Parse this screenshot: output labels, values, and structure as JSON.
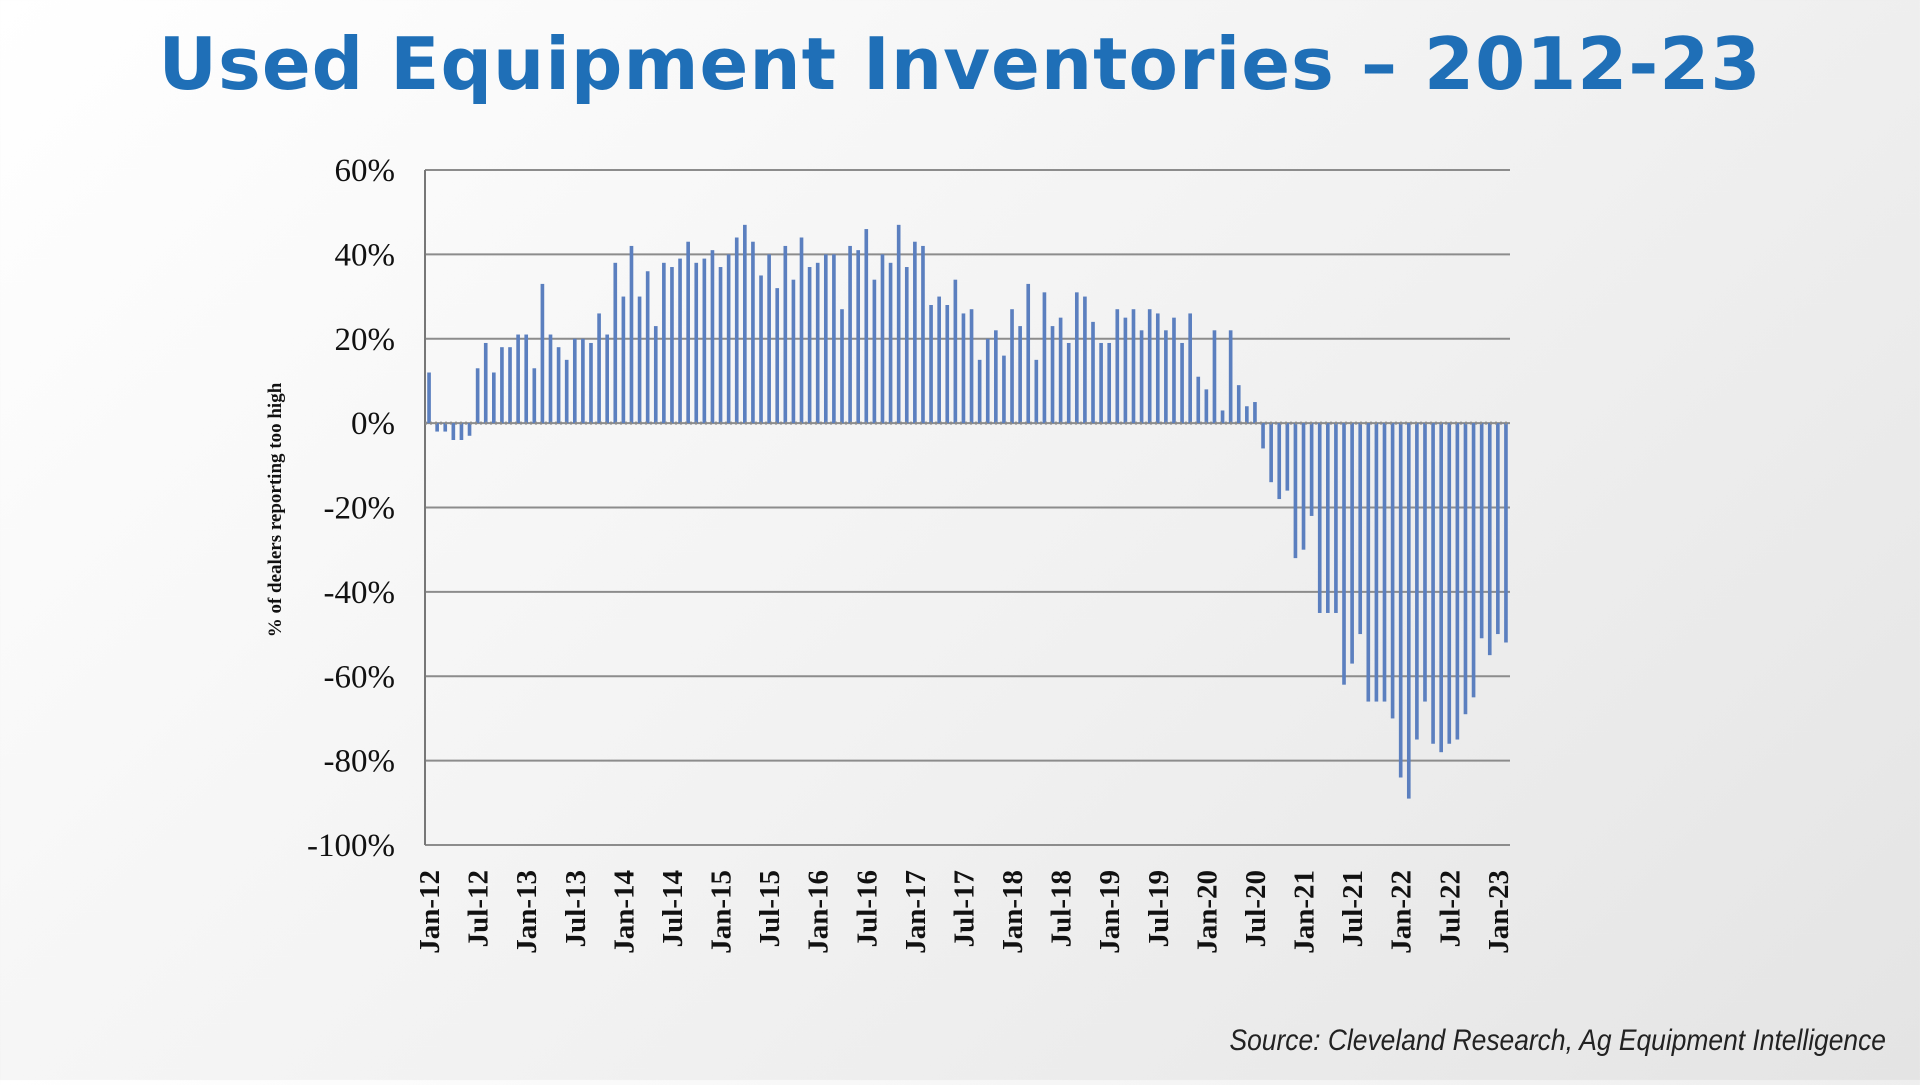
{
  "title": "Used Equipment Inventories – 2012-23",
  "source": "Source: Cleveland Research, Ag Equipment Intelligence",
  "colors": {
    "title": "#1f6fb7",
    "bar": "#5b7fbf",
    "grid": "#8c8c8c",
    "axis": "#777777"
  },
  "chart_data": {
    "type": "bar",
    "ylabel": "% of dealers reporting too high",
    "ylim": [
      -100,
      60
    ],
    "yticks": [
      60,
      40,
      20,
      0,
      -20,
      -40,
      -60,
      -80,
      -100
    ],
    "ytick_labels": [
      "60%",
      "40%",
      "20%",
      "0%",
      "-20%",
      "-40%",
      "-60%",
      "-80%",
      "-100%"
    ],
    "grid": true,
    "x_tick_labels": [
      "Jan-12",
      "Jul-12",
      "Jan-13",
      "Jul-13",
      "Jan-14",
      "Jul-14",
      "Jan-15",
      "Jul-15",
      "Jan-16",
      "Jul-16",
      "Jan-17",
      "Jul-17",
      "Jan-18",
      "Jul-18",
      "Jan-19",
      "Jul-19",
      "Jan-20",
      "Jul-20",
      "Jan-21",
      "Jul-21",
      "Jan-22",
      "Jul-22",
      "Jan-23"
    ],
    "first_month": "Jan-12",
    "series": [
      {
        "values": [
          12,
          -2,
          -2,
          -4,
          -4,
          -3,
          13,
          19,
          12,
          18,
          18,
          21,
          21,
          13,
          33,
          21,
          18,
          15,
          20,
          20,
          19,
          26,
          21,
          38,
          30,
          42,
          30,
          36,
          23,
          38,
          37,
          39,
          43,
          38,
          39,
          41,
          37,
          40,
          44,
          47,
          43,
          35,
          40,
          32,
          42,
          34,
          44,
          37,
          38,
          40,
          40,
          27,
          42,
          41,
          46,
          34,
          40,
          38,
          47,
          37,
          43,
          42,
          28,
          30,
          28,
          34,
          26,
          27,
          15,
          20,
          22,
          16,
          27,
          23,
          33,
          15,
          31,
          23,
          25,
          19,
          31,
          30,
          24,
          19,
          19,
          27,
          25,
          27,
          22,
          27,
          26,
          22,
          25,
          19,
          26,
          11,
          8,
          22,
          3,
          22,
          9,
          4,
          5,
          -6,
          -14,
          -18,
          -16,
          -32,
          -30,
          -22,
          -45,
          -45,
          -45,
          -62,
          -57,
          -50,
          -66,
          -66,
          -66,
          -70,
          -84,
          -89,
          -75,
          -66,
          -76,
          -78,
          -76,
          -75,
          -69,
          -65,
          -51,
          -55,
          -50,
          -52
        ]
      }
    ]
  }
}
